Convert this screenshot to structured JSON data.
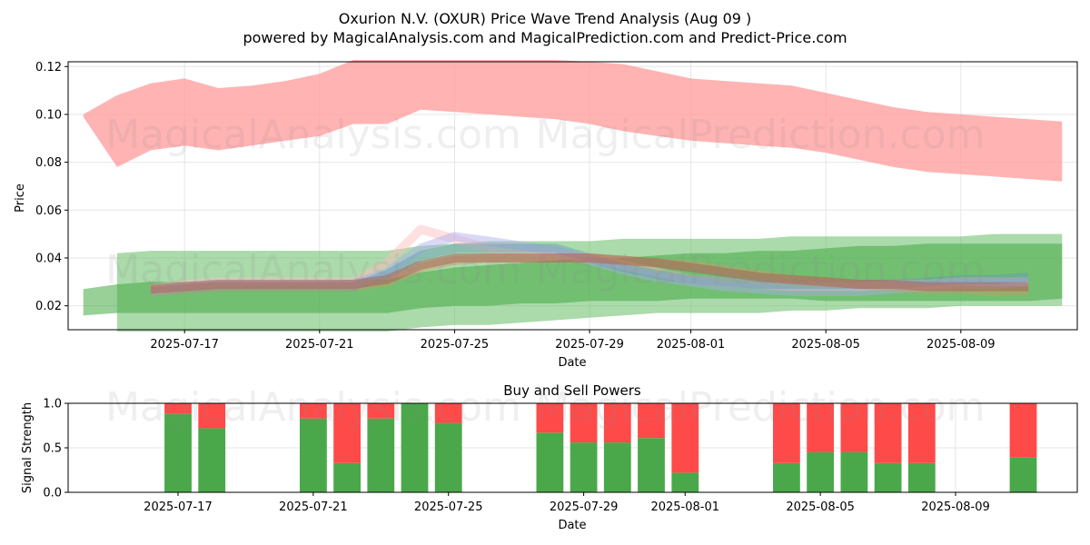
{
  "figure": {
    "title_line1": "Oxurion N.V. (OXUR) Price Wave Trend Analysis (Aug 09 )",
    "title_line2": "powered by MagicalAnalysis.com and MagicalPrediction.com and Predict-Price.com",
    "watermarks": [
      "MagicalAnalysis.com",
      "MagicalPrediction.com"
    ]
  },
  "chart_data": [
    {
      "type": "area",
      "xlabel": "Date",
      "ylabel": "Price",
      "ylim": [
        0.01,
        0.122
      ],
      "x_tick_labels": [
        "2025-07-17",
        "2025-07-21",
        "2025-07-25",
        "2025-07-29",
        "2025-08-01",
        "2025-08-05",
        "2025-08-09"
      ],
      "y_ticks": [
        0.02,
        0.04,
        0.06,
        0.08,
        0.1,
        0.12
      ],
      "y_tick_labels": [
        "0.02",
        "0.04",
        "0.06",
        "0.08",
        "0.10",
        "0.12"
      ],
      "grid": true,
      "x": [
        "2025-07-14",
        "2025-07-15",
        "2025-07-16",
        "2025-07-17",
        "2025-07-18",
        "2025-07-19",
        "2025-07-20",
        "2025-07-21",
        "2025-07-22",
        "2025-07-23",
        "2025-07-24",
        "2025-07-25",
        "2025-07-26",
        "2025-07-27",
        "2025-07-28",
        "2025-07-29",
        "2025-07-30",
        "2025-07-31",
        "2025-08-01",
        "2025-08-02",
        "2025-08-03",
        "2025-08-04",
        "2025-08-05",
        "2025-08-06",
        "2025-08-07",
        "2025-08-08",
        "2025-08-09",
        "2025-08-10",
        "2025-08-11",
        "2025-08-12"
      ],
      "bands": [
        {
          "color": "#ff9999",
          "lower": [
            0.099,
            0.078,
            0.085,
            0.087,
            0.085,
            0.087,
            0.089,
            0.091,
            0.096,
            0.096,
            0.102,
            0.101,
            0.1,
            0.099,
            0.098,
            0.096,
            0.093,
            0.091,
            0.089,
            0.088,
            0.087,
            0.086,
            0.084,
            0.081,
            0.078,
            0.076,
            0.075,
            0.074,
            0.073,
            0.072
          ],
          "upper": [
            0.1,
            0.108,
            0.113,
            0.115,
            0.111,
            0.112,
            0.114,
            0.117,
            0.123,
            0.123,
            0.123,
            0.123,
            0.123,
            0.123,
            0.123,
            0.122,
            0.121,
            0.118,
            0.115,
            0.114,
            0.113,
            0.112,
            0.109,
            0.106,
            0.103,
            0.101,
            0.1,
            0.099,
            0.098,
            0.097
          ]
        },
        {
          "color": "#66bb66",
          "lower": [
            null,
            0.008,
            0.008,
            0.008,
            0.008,
            0.008,
            0.008,
            0.008,
            0.008,
            0.009,
            0.011,
            0.012,
            0.012,
            0.013,
            0.014,
            0.015,
            0.016,
            0.017,
            0.017,
            0.017,
            0.017,
            0.018,
            0.018,
            0.019,
            0.019,
            0.019,
            0.02,
            0.02,
            0.02,
            0.02
          ],
          "upper": [
            null,
            0.042,
            0.043,
            0.043,
            0.043,
            0.043,
            0.043,
            0.043,
            0.043,
            0.043,
            0.045,
            0.046,
            0.047,
            0.047,
            0.047,
            0.047,
            0.048,
            0.048,
            0.048,
            0.048,
            0.048,
            0.049,
            0.049,
            0.049,
            0.049,
            0.049,
            0.049,
            0.05,
            0.05,
            0.05
          ]
        },
        {
          "color": "#44aa44",
          "lower": [
            0.016,
            0.017,
            0.017,
            0.017,
            0.017,
            0.017,
            0.017,
            0.017,
            0.017,
            0.017,
            0.019,
            0.02,
            0.02,
            0.021,
            0.021,
            0.022,
            0.022,
            0.022,
            0.023,
            0.023,
            0.023,
            0.023,
            0.022,
            0.022,
            0.022,
            0.022,
            0.022,
            0.022,
            0.022,
            0.023
          ],
          "upper": [
            0.027,
            0.029,
            0.03,
            0.03,
            0.03,
            0.03,
            0.03,
            0.03,
            0.031,
            0.031,
            0.034,
            0.036,
            0.037,
            0.038,
            0.039,
            0.04,
            0.04,
            0.041,
            0.042,
            0.042,
            0.043,
            0.043,
            0.044,
            0.045,
            0.045,
            0.046,
            0.046,
            0.046,
            0.046,
            0.046
          ]
        }
      ],
      "wave_lines": [
        {
          "color": "#ffbbbb",
          "values": [
            null,
            null,
            0.027,
            0.029,
            0.03,
            0.03,
            0.03,
            0.03,
            0.03,
            0.038,
            0.052,
            0.048,
            0.044,
            0.043,
            0.042,
            0.04,
            0.037,
            0.034,
            0.031,
            0.03,
            0.029,
            0.028,
            0.028,
            0.028,
            0.029,
            0.029,
            0.03,
            0.03,
            0.03,
            null
          ]
        },
        {
          "color": "#aaaaee",
          "values": [
            null,
            null,
            0.026,
            0.028,
            0.029,
            0.029,
            0.029,
            0.029,
            0.029,
            0.034,
            0.044,
            0.049,
            0.047,
            0.045,
            0.043,
            0.039,
            0.035,
            0.032,
            0.03,
            0.028,
            0.027,
            0.026,
            0.026,
            0.026,
            0.027,
            0.028,
            0.029,
            0.029,
            0.03,
            null
          ]
        },
        {
          "color": "#6699bb",
          "values": [
            null,
            null,
            0.026,
            0.027,
            0.028,
            0.028,
            0.028,
            0.028,
            0.028,
            0.033,
            0.041,
            0.044,
            0.044,
            0.044,
            0.044,
            0.04,
            0.036,
            0.033,
            0.031,
            0.03,
            0.029,
            0.029,
            0.029,
            0.029,
            0.029,
            0.03,
            0.031,
            0.031,
            0.032,
            null
          ]
        },
        {
          "color": "#cc9966",
          "values": [
            null,
            null,
            0.026,
            0.027,
            0.028,
            0.028,
            0.028,
            0.028,
            0.028,
            0.03,
            0.036,
            0.039,
            0.04,
            0.04,
            0.04,
            0.04,
            0.039,
            0.038,
            0.037,
            0.035,
            0.033,
            0.031,
            0.03,
            0.029,
            0.028,
            0.027,
            0.027,
            0.026,
            0.026,
            null
          ]
        },
        {
          "color": "#aa5555",
          "values": [
            null,
            null,
            0.027,
            0.028,
            0.029,
            0.029,
            0.029,
            0.029,
            0.029,
            0.031,
            0.037,
            0.04,
            0.04,
            0.04,
            0.04,
            0.04,
            0.039,
            0.038,
            0.036,
            0.034,
            0.032,
            0.031,
            0.03,
            0.029,
            0.029,
            0.028,
            0.028,
            0.028,
            0.028,
            null
          ]
        }
      ]
    },
    {
      "type": "bar",
      "title": "Buy and Sell Powers",
      "xlabel": "Date",
      "ylabel": "Signal Strength",
      "ylim": [
        0,
        1.0
      ],
      "y_ticks": [
        0.0,
        0.5,
        1.0
      ],
      "y_tick_labels": [
        "0.0",
        "0.5",
        "1.0"
      ],
      "x_tick_labels": [
        "2025-07-17",
        "2025-07-21",
        "2025-07-25",
        "2025-07-29",
        "2025-08-01",
        "2025-08-05",
        "2025-08-09"
      ],
      "categories": [
        "2025-07-17",
        "2025-07-18",
        "2025-07-21",
        "2025-07-22",
        "2025-07-23",
        "2025-07-24",
        "2025-07-25",
        "2025-07-28",
        "2025-07-29",
        "2025-07-30",
        "2025-07-31",
        "2025-08-01",
        "2025-08-04",
        "2025-08-05",
        "2025-08-06",
        "2025-08-07",
        "2025-08-08",
        "2025-08-11"
      ],
      "series": [
        {
          "color": "#4aa84a",
          "values": [
            0.88,
            0.72,
            0.83,
            0.33,
            0.83,
            1.0,
            0.78,
            0.67,
            0.56,
            0.56,
            0.61,
            0.22,
            0.33,
            0.45,
            0.45,
            0.33,
            0.33,
            0.39
          ]
        },
        {
          "color": "#ff4a4a",
          "values": [
            0.12,
            0.28,
            0.17,
            0.67,
            0.17,
            0.0,
            0.22,
            0.33,
            0.44,
            0.44,
            0.39,
            0.78,
            0.67,
            0.55,
            0.55,
            0.67,
            0.67,
            0.61
          ]
        }
      ],
      "grid": true
    }
  ]
}
